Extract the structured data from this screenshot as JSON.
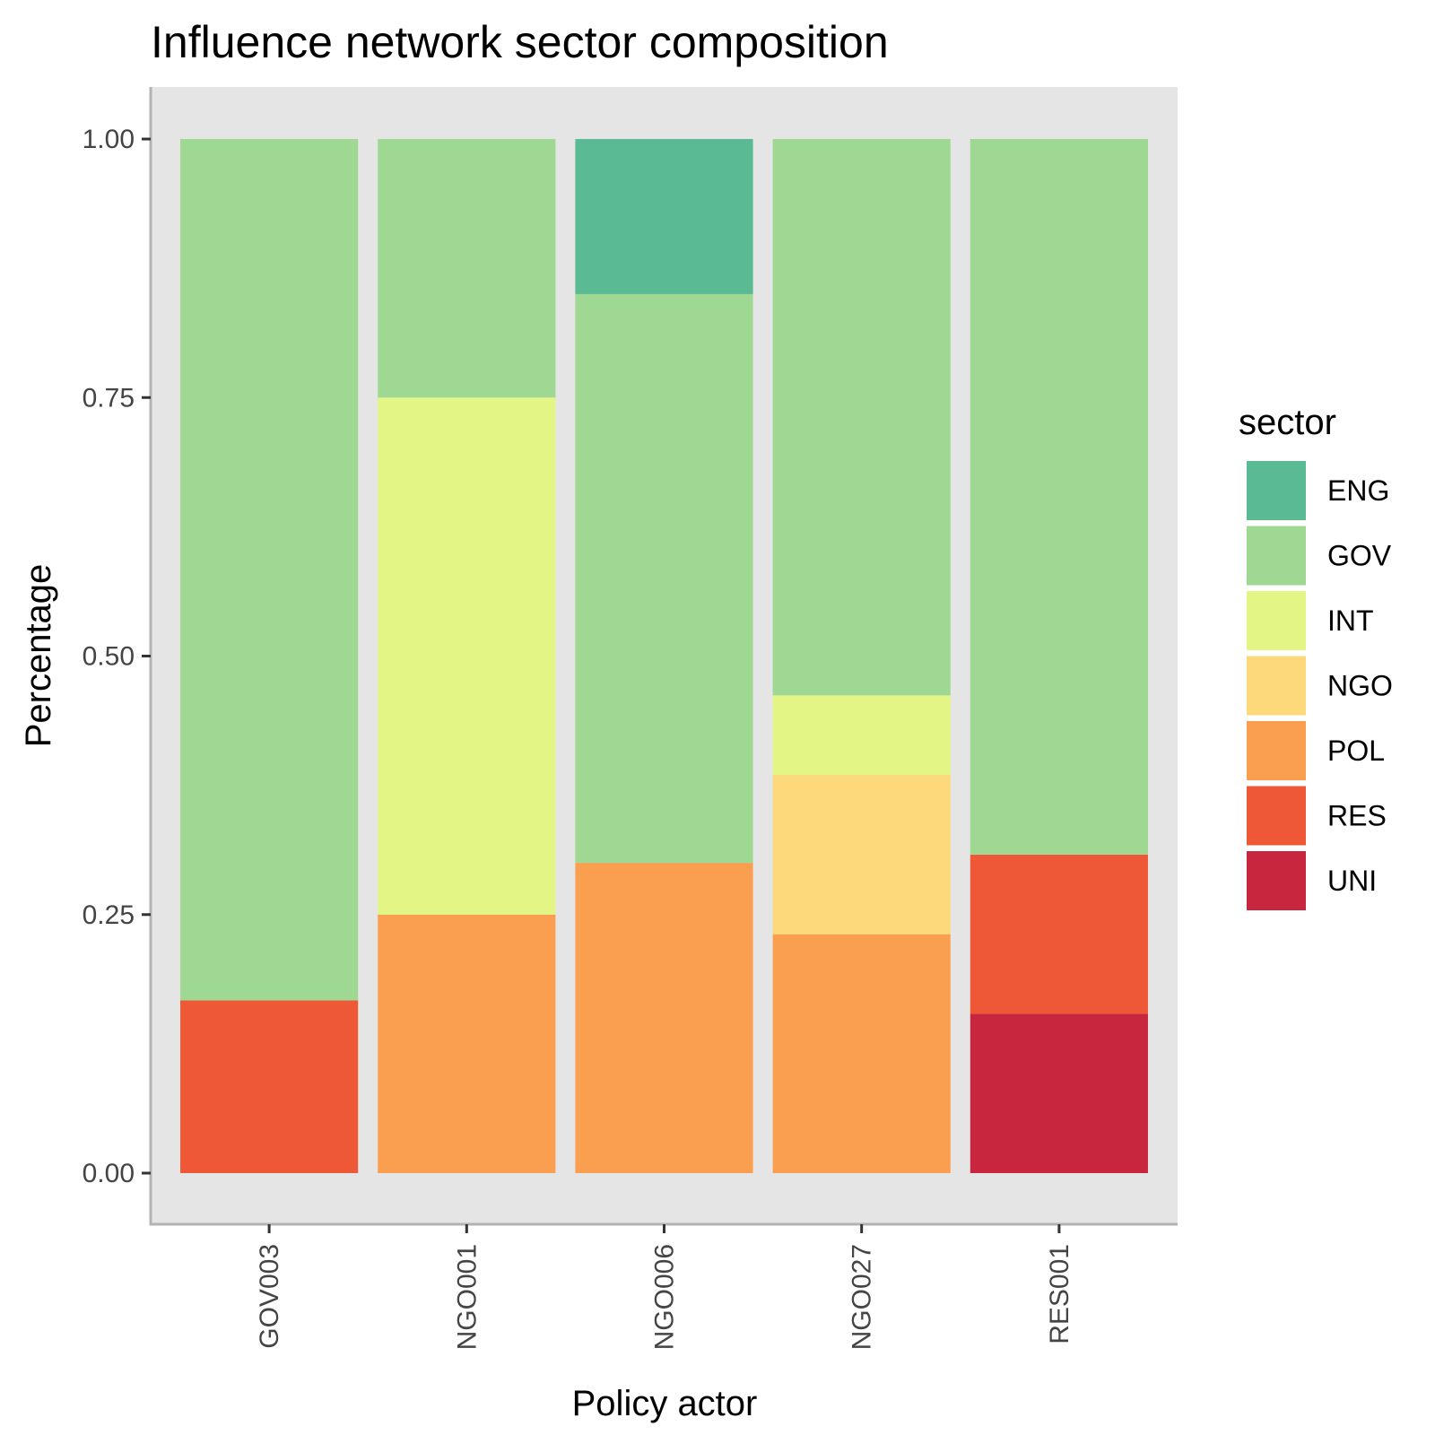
{
  "chart_data": {
    "type": "bar",
    "stacked": true,
    "title": "Influence network sector composition",
    "xlabel": "Policy actor",
    "ylabel": "Percentage",
    "ylim": [
      0,
      1
    ],
    "yticks": [
      "0.00",
      "0.25",
      "0.50",
      "0.75",
      "1.00"
    ],
    "categories": [
      "GOV003",
      "NGO001",
      "NGO006",
      "NGO027",
      "RES001"
    ],
    "legend_title": "sector",
    "legend_position": "right",
    "grid": false,
    "panel_background": "#e5e5e5",
    "series": [
      {
        "name": "ENG",
        "color": "#5aba94",
        "values": [
          0,
          0,
          0.15,
          0,
          0
        ]
      },
      {
        "name": "GOV",
        "color": "#9fd893",
        "values": [
          0.833,
          0.25,
          0.55,
          0.538,
          0.692
        ]
      },
      {
        "name": "INT",
        "color": "#e2f585",
        "values": [
          0,
          0.5,
          0,
          0.077,
          0
        ]
      },
      {
        "name": "NGO",
        "color": "#fdd97c",
        "values": [
          0,
          0,
          0,
          0.154,
          0
        ]
      },
      {
        "name": "POL",
        "color": "#fa9e50",
        "values": [
          0,
          0.25,
          0.3,
          0.231,
          0
        ]
      },
      {
        "name": "RES",
        "color": "#ef5836",
        "values": [
          0.167,
          0,
          0,
          0,
          0.154
        ]
      },
      {
        "name": "UNI",
        "color": "#c8263e",
        "values": [
          0,
          0,
          0,
          0,
          0.154
        ]
      }
    ]
  }
}
